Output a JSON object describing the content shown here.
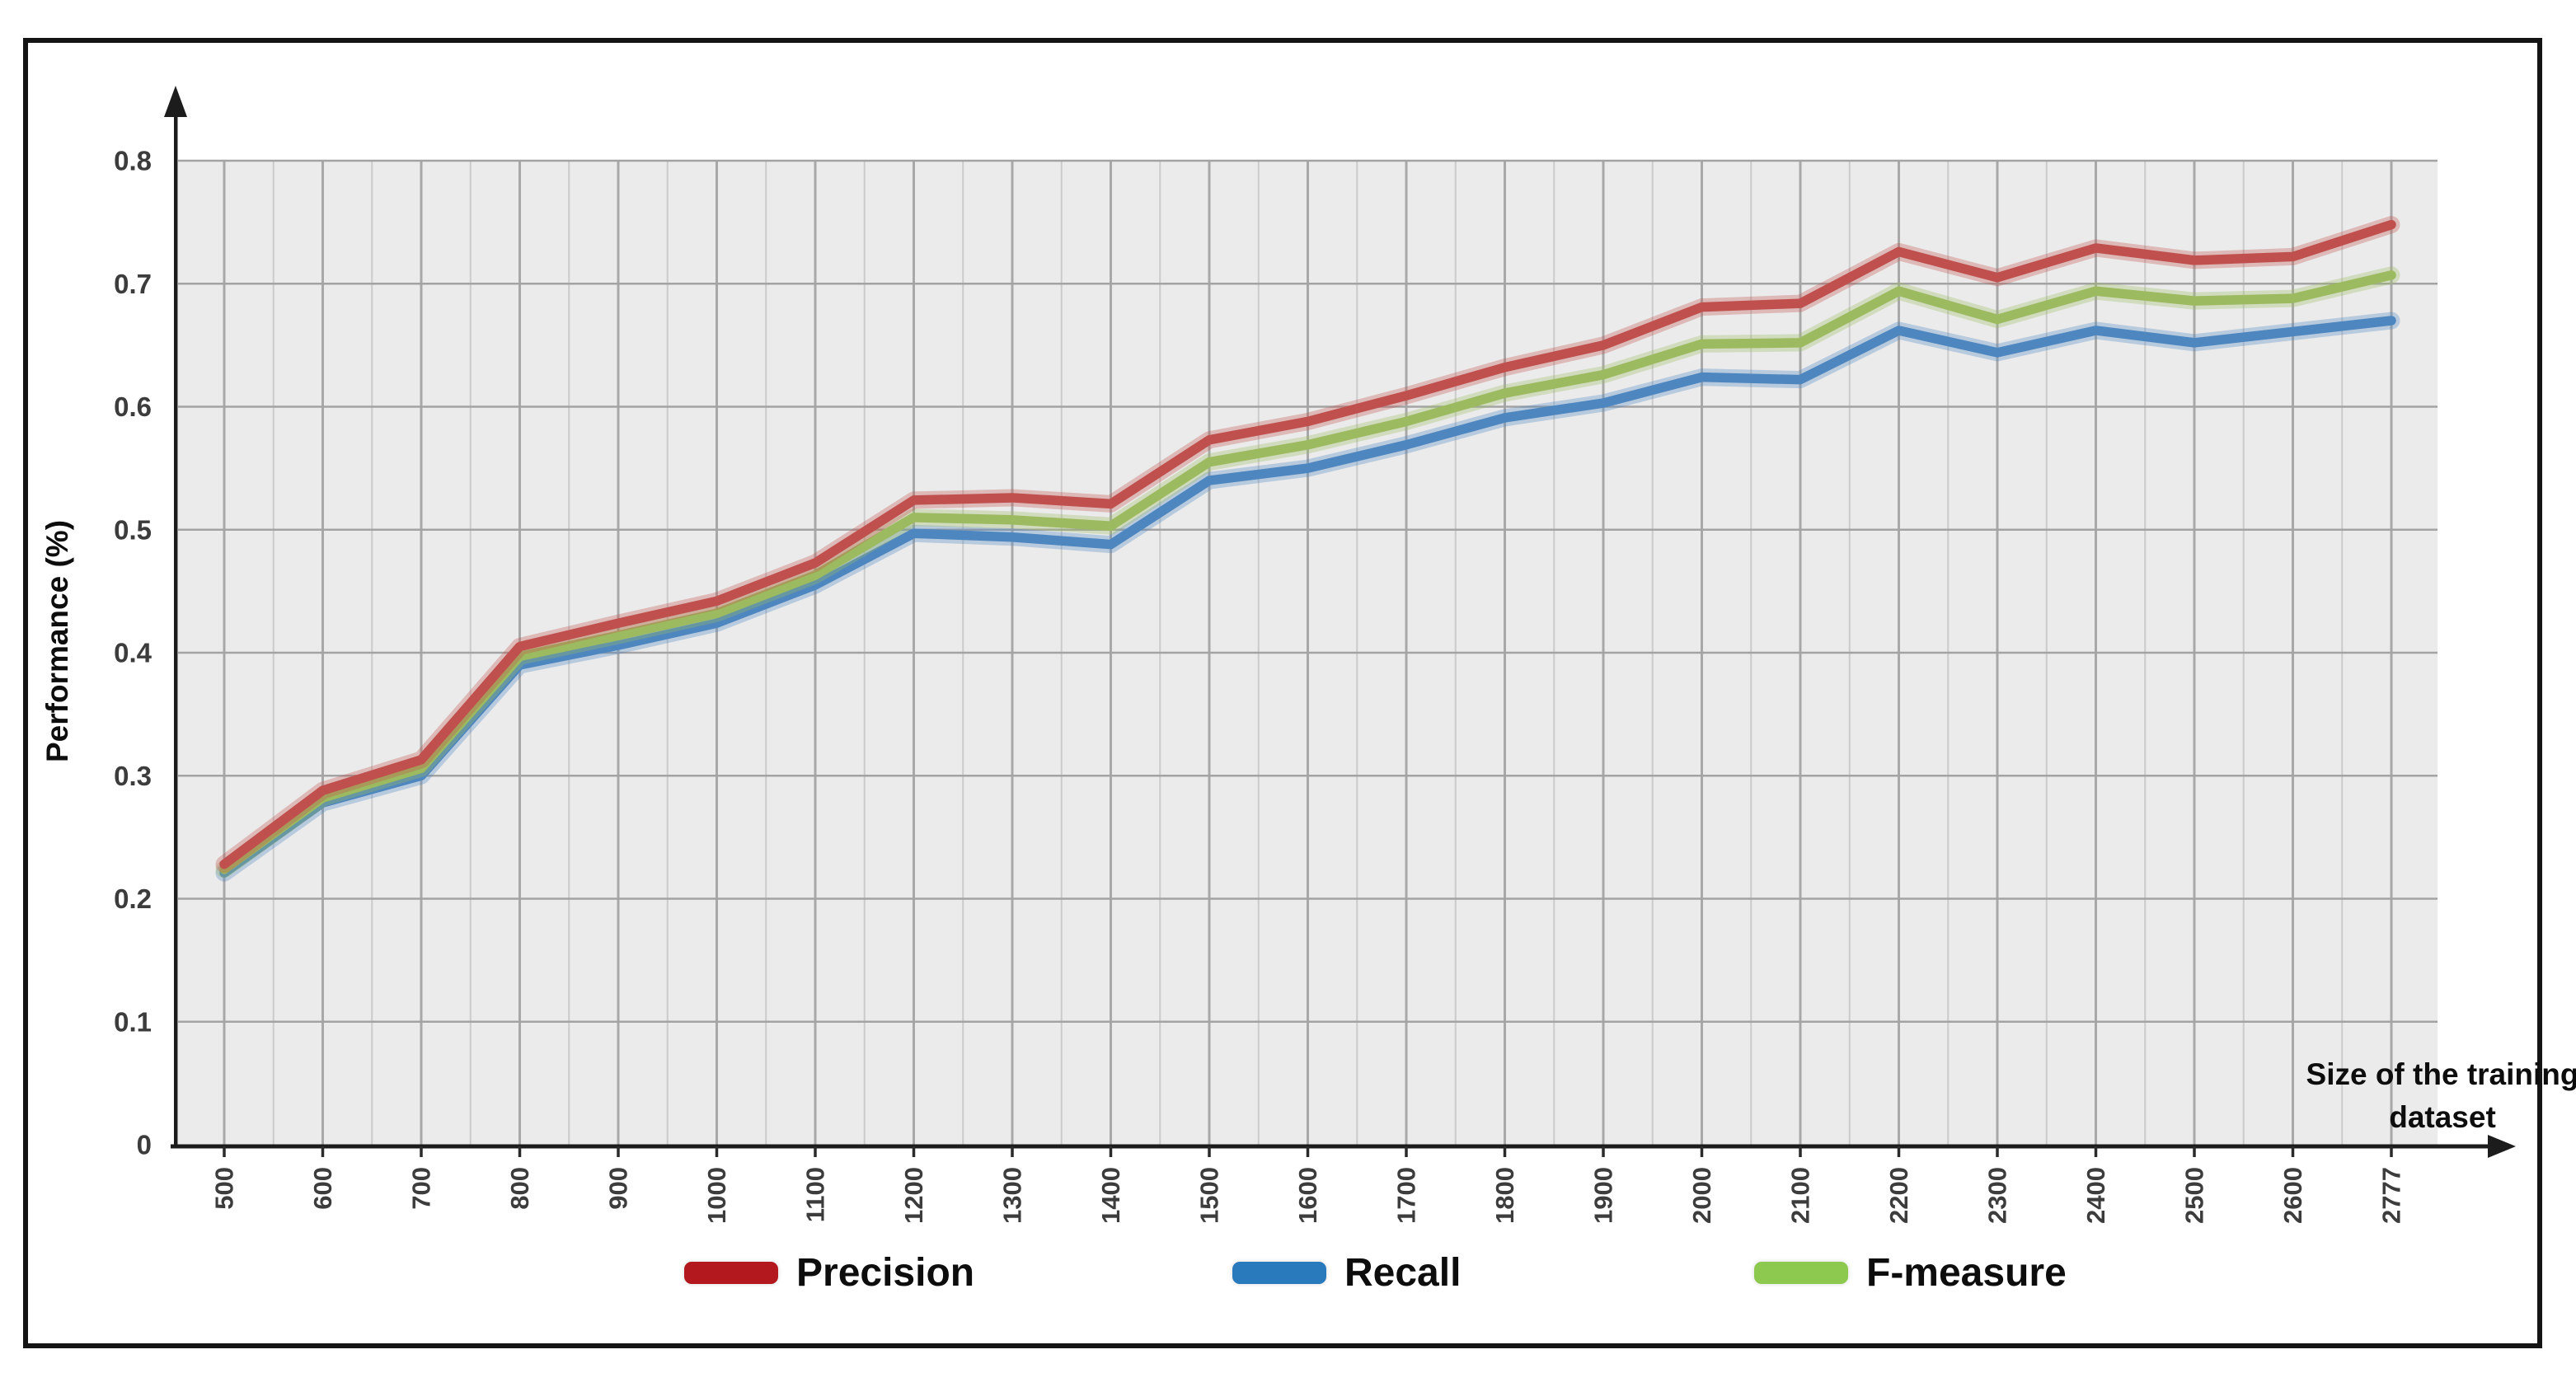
{
  "chart_data": {
    "type": "line",
    "title": "",
    "ylabel": "Performance (%)",
    "xlabel": "Size of the training dataset",
    "xlabel_lines": [
      "Size of the training",
      "dataset"
    ],
    "ylim": [
      0,
      0.8
    ],
    "y_tick_step": 0.1,
    "y_tick_labels": [
      "0",
      "0.1",
      "0.2",
      "0.3",
      "0.4",
      "0.5",
      "0.6",
      "0.7",
      "0.8"
    ],
    "grid": "both",
    "plot_bg_color": "#ebebeb",
    "gridline_color_major": "#a8a8a8",
    "gridline_color_minor": "#cbcbcb",
    "axis_color": "#1c1c1c",
    "legend_position": "bottom",
    "categories": [
      500,
      600,
      700,
      800,
      900,
      1000,
      1100,
      1200,
      1300,
      1400,
      1500,
      1600,
      1700,
      1800,
      1900,
      2000,
      2100,
      2200,
      2300,
      2400,
      2500,
      2600,
      2777
    ],
    "series": [
      {
        "name": "Recall",
        "line_color": "#4e86c0",
        "legend_color": "#2979bd",
        "values": [
          0.221,
          0.278,
          0.3,
          0.39,
          0.406,
          0.424,
          0.455,
          0.497,
          0.494,
          0.488,
          0.54,
          0.55,
          0.569,
          0.591,
          0.603,
          0.624,
          0.622,
          0.662,
          0.644,
          0.662,
          0.652,
          0.661,
          0.67
        ]
      },
      {
        "name": "F-measure",
        "line_color": "#9cba5f",
        "legend_color": "#8ec94f",
        "values": [
          0.224,
          0.282,
          0.306,
          0.397,
          0.414,
          0.432,
          0.463,
          0.51,
          0.508,
          0.503,
          0.555,
          0.569,
          0.588,
          0.611,
          0.626,
          0.651,
          0.652,
          0.694,
          0.671,
          0.694,
          0.686,
          0.688,
          0.707
        ]
      },
      {
        "name": "Precision",
        "line_color": "#c0504d",
        "legend_color": "#b2181d",
        "values": [
          0.228,
          0.288,
          0.313,
          0.405,
          0.424,
          0.442,
          0.473,
          0.524,
          0.526,
          0.521,
          0.573,
          0.588,
          0.609,
          0.632,
          0.65,
          0.681,
          0.684,
          0.726,
          0.705,
          0.729,
          0.719,
          0.722,
          0.748
        ]
      }
    ],
    "legend_order": [
      "Precision",
      "Recall",
      "F-measure"
    ]
  }
}
